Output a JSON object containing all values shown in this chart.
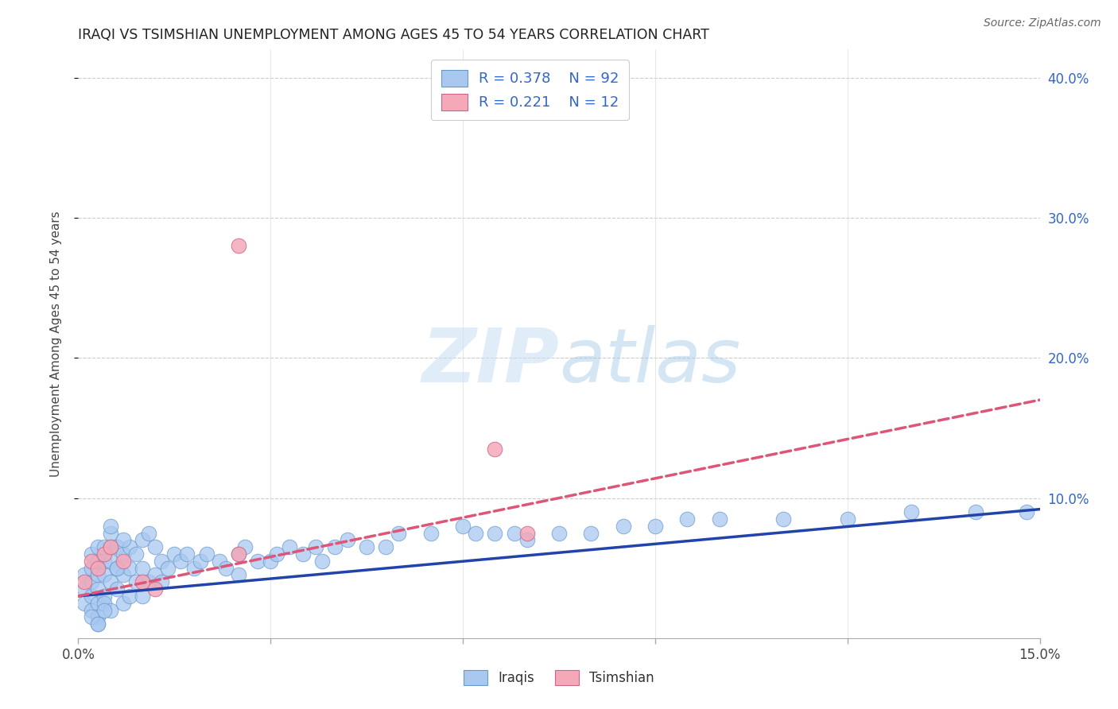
{
  "title": "IRAQI VS TSIMSHIAN UNEMPLOYMENT AMONG AGES 45 TO 54 YEARS CORRELATION CHART",
  "source": "Source: ZipAtlas.com",
  "ylabel": "Unemployment Among Ages 45 to 54 years",
  "xlim": [
    0.0,
    0.15
  ],
  "ylim": [
    0.0,
    0.42
  ],
  "iraqis_R": 0.378,
  "iraqis_N": 92,
  "tsimshian_R": 0.221,
  "tsimshian_N": 12,
  "iraqis_color": "#a8c8f0",
  "tsimshian_color": "#f4a8b8",
  "iraqis_edge_color": "#6699cc",
  "tsimshian_edge_color": "#cc6688",
  "iraqis_line_color": "#2244aa",
  "tsimshian_line_color": "#dd5577",
  "background_color": "#ffffff",
  "grid_color": "#cccccc",
  "right_tick_color": "#3366cc",
  "iraqis_x": [
    0.001,
    0.001,
    0.001,
    0.002,
    0.002,
    0.002,
    0.002,
    0.002,
    0.003,
    0.003,
    0.003,
    0.003,
    0.003,
    0.003,
    0.004,
    0.004,
    0.004,
    0.004,
    0.004,
    0.005,
    0.005,
    0.005,
    0.005,
    0.005,
    0.006,
    0.006,
    0.006,
    0.007,
    0.007,
    0.007,
    0.008,
    0.008,
    0.008,
    0.009,
    0.009,
    0.01,
    0.01,
    0.01,
    0.011,
    0.011,
    0.012,
    0.012,
    0.013,
    0.013,
    0.014,
    0.015,
    0.016,
    0.017,
    0.018,
    0.019,
    0.02,
    0.022,
    0.023,
    0.025,
    0.025,
    0.026,
    0.028,
    0.03,
    0.031,
    0.033,
    0.035,
    0.037,
    0.038,
    0.04,
    0.042,
    0.045,
    0.048,
    0.05,
    0.055,
    0.06,
    0.062,
    0.065,
    0.068,
    0.07,
    0.075,
    0.08,
    0.085,
    0.09,
    0.095,
    0.1,
    0.11,
    0.12,
    0.13,
    0.14,
    0.148,
    0.005,
    0.006,
    0.007,
    0.003,
    0.004,
    0.002,
    0.003
  ],
  "iraqis_y": [
    0.035,
    0.025,
    0.045,
    0.03,
    0.04,
    0.05,
    0.06,
    0.02,
    0.035,
    0.045,
    0.055,
    0.025,
    0.065,
    0.015,
    0.03,
    0.045,
    0.055,
    0.065,
    0.025,
    0.04,
    0.055,
    0.065,
    0.075,
    0.02,
    0.035,
    0.05,
    0.065,
    0.025,
    0.045,
    0.06,
    0.03,
    0.05,
    0.065,
    0.04,
    0.06,
    0.03,
    0.05,
    0.07,
    0.04,
    0.075,
    0.045,
    0.065,
    0.04,
    0.055,
    0.05,
    0.06,
    0.055,
    0.06,
    0.05,
    0.055,
    0.06,
    0.055,
    0.05,
    0.06,
    0.045,
    0.065,
    0.055,
    0.055,
    0.06,
    0.065,
    0.06,
    0.065,
    0.055,
    0.065,
    0.07,
    0.065,
    0.065,
    0.075,
    0.075,
    0.08,
    0.075,
    0.075,
    0.075,
    0.07,
    0.075,
    0.075,
    0.08,
    0.08,
    0.085,
    0.085,
    0.085,
    0.085,
    0.09,
    0.09,
    0.09,
    0.08,
    0.05,
    0.07,
    0.01,
    0.02,
    0.015,
    0.01
  ],
  "tsimshian_x": [
    0.001,
    0.002,
    0.003,
    0.004,
    0.005,
    0.007,
    0.01,
    0.012,
    0.025,
    0.025,
    0.065,
    0.07
  ],
  "tsimshian_y": [
    0.04,
    0.055,
    0.05,
    0.06,
    0.065,
    0.055,
    0.04,
    0.035,
    0.28,
    0.06,
    0.135,
    0.075
  ],
  "iraqis_line_x": [
    0.0,
    0.15
  ],
  "iraqis_line_y": [
    0.03,
    0.092
  ],
  "tsimshian_line_x": [
    0.0,
    0.15
  ],
  "tsimshian_line_y": [
    0.03,
    0.17
  ]
}
